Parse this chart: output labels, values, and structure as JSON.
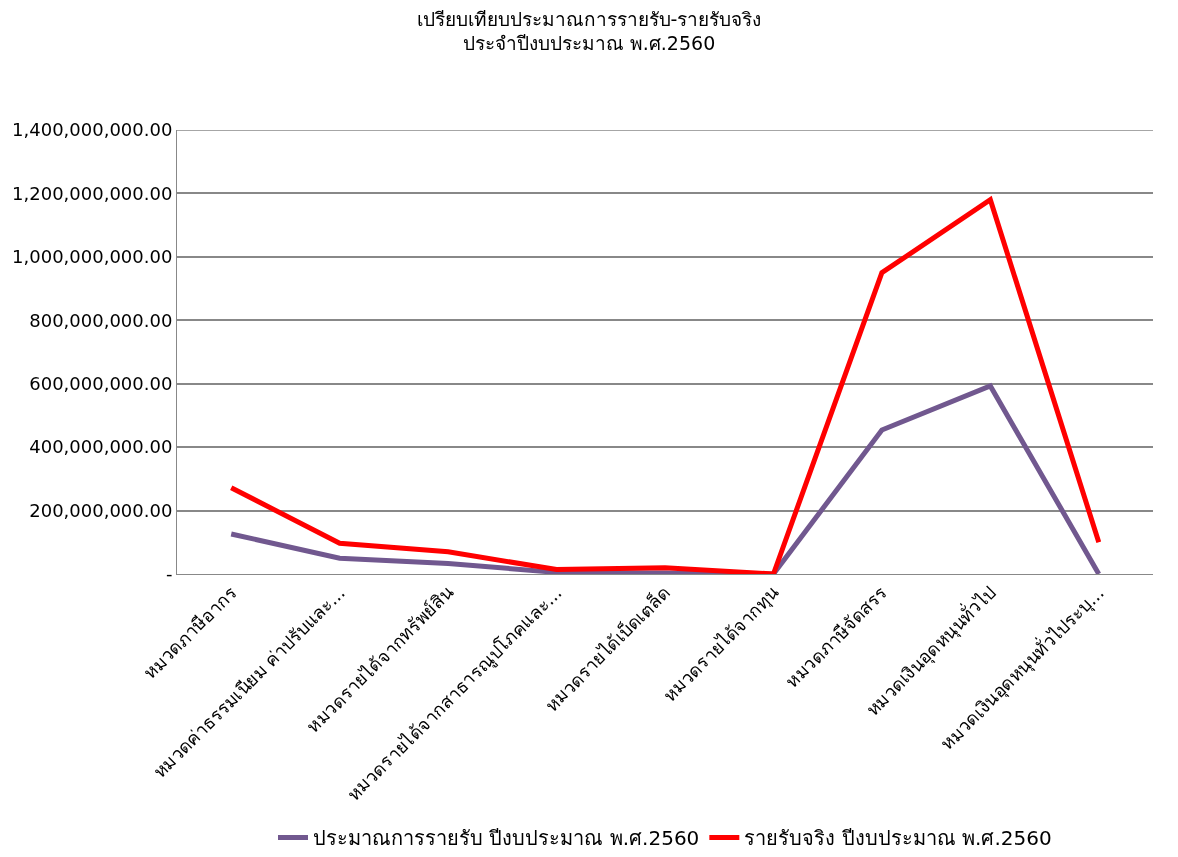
{
  "chart_data": {
    "type": "line",
    "title": "เปรียบเทียบประมาณการรายรับ-รายรับจริง",
    "subtitle": "ประจำปีงบประมาณ พ.ศ.2560",
    "categories": [
      "หมวดภาษีอากร",
      "หมวดค่าธรรมเนียม ค่าปรับและ...",
      "หมวดรายได้จากทรัพย์สิน",
      "หมวดรายได้จากสาธารณูปโภคและ...",
      "หมวดรายได้เบ็ดเตล็ด",
      "หมวดรายได้จากทุน",
      "หมวดภาษีจัดสรร",
      "หมวดเงินอุดหนุนทั่วไป",
      "หมวดเงินอุดหนุนทั่วไประบุ..."
    ],
    "series": [
      {
        "name": "ประมาณการรายรับ ปีงบประมาณ พ.ศ.2560",
        "color": "#71588f",
        "values": [
          126000000,
          50000000,
          33000000,
          5000000,
          3000000,
          0,
          454000000,
          593000000,
          0
        ]
      },
      {
        "name": "รายรับจริง ปีงบประมาณ พ.ศ.2560",
        "color": "#ff0000",
        "values": [
          272000000,
          97000000,
          70000000,
          14000000,
          20000000,
          0,
          950000000,
          1180000000,
          100000000
        ]
      }
    ],
    "ylim": [
      0,
      1400000000
    ],
    "yticks": [
      {
        "value": 0,
        "label": "-"
      },
      {
        "value": 200000000,
        "label": "200,000,000.00"
      },
      {
        "value": 400000000,
        "label": "400,000,000.00"
      },
      {
        "value": 600000000,
        "label": "600,000,000.00"
      },
      {
        "value": 800000000,
        "label": "800,000,000.00"
      },
      {
        "value": 1000000000,
        "label": "1,000,000,000.00"
      },
      {
        "value": 1200000000,
        "label": "1,200,000,000.00"
      },
      {
        "value": 1400000000,
        "label": "1,400,000,000.00"
      }
    ],
    "grid": "y",
    "legend": "bottom",
    "marker": "none",
    "line_style": "solid"
  }
}
